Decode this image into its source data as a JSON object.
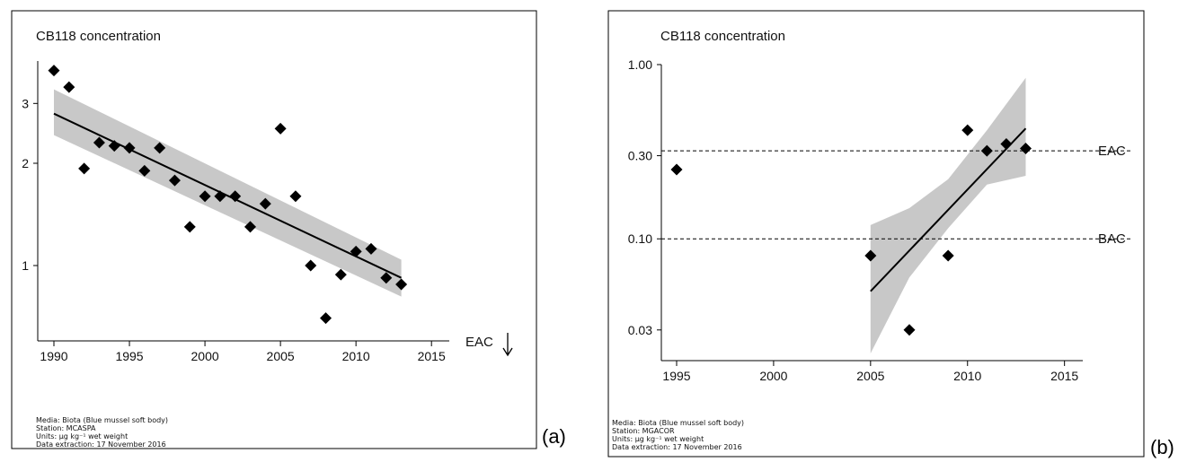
{
  "panel_labels": [
    "(a)",
    "(b)"
  ],
  "chart_data": [
    {
      "type": "scatter",
      "title": "CB118 concentration",
      "xlabel": "",
      "ylabel": "",
      "x_ticks": [
        1990,
        1995,
        2000,
        2005,
        2010,
        2015
      ],
      "y_scale": "log",
      "y_ticks": [
        1,
        2,
        3
      ],
      "y_tick_labels": [
        "1",
        "2",
        "3"
      ],
      "xlim": [
        1990,
        2015
      ],
      "ylim": [
        0.6,
        4.0
      ],
      "grid": false,
      "points": [
        {
          "x": 1990,
          "y": 3.75
        },
        {
          "x": 1991,
          "y": 3.35
        },
        {
          "x": 1992,
          "y": 1.93
        },
        {
          "x": 1993,
          "y": 2.3
        },
        {
          "x": 1994,
          "y": 2.25
        },
        {
          "x": 1995,
          "y": 2.22
        },
        {
          "x": 1996,
          "y": 1.9
        },
        {
          "x": 1997,
          "y": 2.22
        },
        {
          "x": 1998,
          "y": 1.78
        },
        {
          "x": 1999,
          "y": 1.3
        },
        {
          "x": 2000,
          "y": 1.6
        },
        {
          "x": 2001,
          "y": 1.6
        },
        {
          "x": 2002,
          "y": 1.6
        },
        {
          "x": 2003,
          "y": 1.3
        },
        {
          "x": 2004,
          "y": 1.52
        },
        {
          "x": 2005,
          "y": 2.53
        },
        {
          "x": 2006,
          "y": 1.6
        },
        {
          "x": 2007,
          "y": 1.0
        },
        {
          "x": 2008,
          "y": 0.7
        },
        {
          "x": 2009,
          "y": 0.94
        },
        {
          "x": 2010,
          "y": 1.1
        },
        {
          "x": 2011,
          "y": 1.12
        },
        {
          "x": 2012,
          "y": 0.92
        },
        {
          "x": 2013,
          "y": 0.88
        }
      ],
      "trend": {
        "x": [
          1990,
          2013
        ],
        "y": [
          2.8,
          0.92
        ]
      },
      "confidence_band": {
        "x": [
          1990,
          2013
        ],
        "upper": [
          3.3,
          1.04
        ],
        "lower": [
          2.42,
          0.81
        ]
      },
      "annotations": [
        {
          "text": "EAC",
          "arrow": "down"
        }
      ],
      "footer": [
        "Media: Biota (Blue mussel soft body)",
        "Station: MCASPA",
        "Units:  µg kg⁻¹ wet weight",
        "Data extraction: 17 November 2016"
      ]
    },
    {
      "type": "scatter",
      "title": "CB118 concentration",
      "xlabel": "",
      "ylabel": "",
      "x_ticks": [
        1995,
        2000,
        2005,
        2010,
        2015
      ],
      "y_scale": "log",
      "y_ticks": [
        1.0,
        0.3,
        0.1,
        0.03
      ],
      "y_tick_labels": [
        "1.00",
        "0.30",
        "0.10",
        "0.03"
      ],
      "xlim": [
        1995,
        2015
      ],
      "ylim": [
        0.02,
        1.0
      ],
      "grid": false,
      "points": [
        {
          "x": 1995,
          "y": 0.25
        },
        {
          "x": 2005,
          "y": 0.08
        },
        {
          "x": 2007,
          "y": 0.03
        },
        {
          "x": 2009,
          "y": 0.08
        },
        {
          "x": 2010,
          "y": 0.42
        },
        {
          "x": 2011,
          "y": 0.32
        },
        {
          "x": 2012,
          "y": 0.35
        },
        {
          "x": 2013,
          "y": 0.33
        }
      ],
      "trend": {
        "x": [
          2005,
          2013
        ],
        "y": [
          0.05,
          0.43
        ]
      },
      "confidence_band": {
        "x": [
          2005,
          2007,
          2009,
          2011,
          2013
        ],
        "upper": [
          0.12,
          0.15,
          0.22,
          0.42,
          0.84
        ],
        "lower": [
          0.022,
          0.06,
          0.115,
          0.205,
          0.23
        ]
      },
      "reference_lines": [
        {
          "label": "EAC",
          "y": 0.32,
          "style": "dashed"
        },
        {
          "label": "BAC",
          "y": 0.1,
          "style": "dashed"
        }
      ],
      "footer": [
        "Media: Biota (Blue mussel soft body)",
        "Station: MGACOR",
        "Units:  µg kg⁻¹ wet weight",
        "Data extraction: 17 November 2016"
      ]
    }
  ]
}
